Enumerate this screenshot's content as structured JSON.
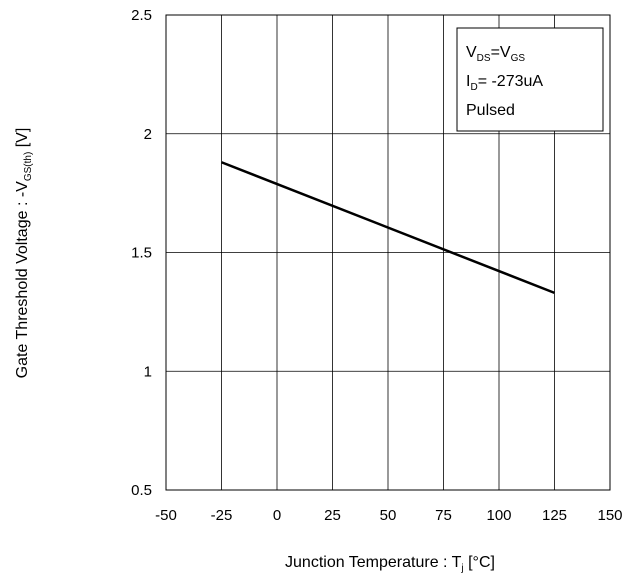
{
  "chart_data": {
    "type": "line",
    "title": "",
    "xlabel": {
      "main": "Junction Temperature : T",
      "sub": "j",
      "tail": " [°C]"
    },
    "ylabel": {
      "main": "Gate Threshold Voltage : -V",
      "sub": "GS(th)",
      "tail": " [V]"
    },
    "xlim": [
      -50,
      150
    ],
    "ylim": [
      0.5,
      2.5
    ],
    "xticks": [
      "-50",
      "-25",
      "0",
      "25",
      "50",
      "75",
      "100",
      "125",
      "150"
    ],
    "yticks": [
      "0.5",
      "1",
      "1.5",
      "2",
      "2.5"
    ],
    "grid": true,
    "series": [
      {
        "x": [
          -25,
          125
        ],
        "values": [
          1.88,
          1.33
        ]
      }
    ],
    "legend": {
      "placement": "top-right",
      "line1": {
        "a": "V",
        "a_sub": "DS",
        "eq": "=V",
        "b_sub": "GS"
      },
      "line2": {
        "a": "I",
        "a_sub": "D",
        "rest": "= -273uA"
      },
      "line3": "Pulsed"
    }
  }
}
